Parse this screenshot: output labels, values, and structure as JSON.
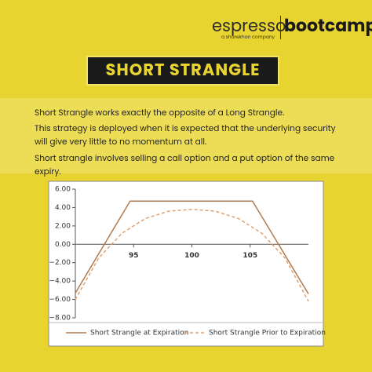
{
  "header": {
    "brand": "espresso",
    "tagline": "a sharekhan company",
    "program": "bootcamp",
    "title": "SHORT STRANGLE"
  },
  "paragraphs": [
    "Short Strangle works exactly the opposite of a Long Strangle.",
    "This strategy is deployed when it is expected that the underlying security will give very little to no momentum at all.",
    "Short strangle involves selling a call option and a put option of the same expiry."
  ],
  "chart_data": {
    "type": "line",
    "xlim": [
      90,
      110
    ],
    "xticks": [
      95,
      100,
      105
    ],
    "ylim": [
      -8,
      6
    ],
    "yticks": [
      {
        "value": 6,
        "label": "6.00"
      },
      {
        "value": 4,
        "label": "4.00"
      },
      {
        "value": 2,
        "label": "2.00"
      },
      {
        "value": 0,
        "label": "0.00"
      },
      {
        "value": -2,
        "label": "−2.00"
      },
      {
        "value": -4,
        "label": "−4.00"
      },
      {
        "value": -6,
        "label": "−6.00"
      },
      {
        "value": -8,
        "label": "−8.00"
      }
    ],
    "series": [
      {
        "name": "Short Strangle at Expiration",
        "color": "#b07a4e",
        "dashed": false,
        "x": [
          90,
          94.7,
          105.2,
          110
        ],
        "values": [
          -5.3,
          4.7,
          4.7,
          -5.4
        ]
      },
      {
        "name": "Short Strangle Prior to Expiration",
        "color": "#e0a070",
        "dashed": true,
        "x": [
          90,
          92,
          94,
          96,
          98,
          100,
          102,
          104,
          106,
          108,
          110
        ],
        "values": [
          -6.0,
          -1.5,
          1.2,
          2.8,
          3.6,
          3.8,
          3.6,
          2.8,
          1.2,
          -1.5,
          -6.2
        ]
      }
    ]
  }
}
